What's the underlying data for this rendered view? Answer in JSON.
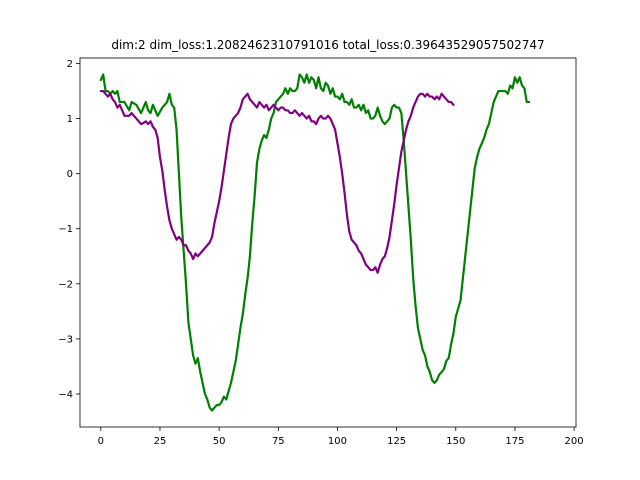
{
  "chart_data": {
    "type": "line",
    "title": "dim:2 dim_loss:1.2082462310791016 total_loss:0.39643529057502747",
    "xlabel": "",
    "ylabel": "",
    "xlim": [
      -8.8,
      200.8
    ],
    "ylim": [
      -4.6,
      2.1
    ],
    "xticks": [
      0,
      25,
      50,
      75,
      100,
      125,
      150,
      175,
      200
    ],
    "yticks": [
      -4,
      -3,
      -2,
      -1,
      0,
      1,
      2
    ],
    "ytick_labels": [
      "−4",
      "−3",
      "−2",
      "−1",
      "0",
      "1",
      "2"
    ],
    "grid": false,
    "legend": "none",
    "series": [
      {
        "color": "#008000",
        "points": [
          [
            0,
            1.7
          ],
          [
            1,
            1.8
          ],
          [
            2,
            1.5
          ],
          [
            3,
            1.5
          ],
          [
            4,
            1.45
          ],
          [
            5,
            1.5
          ],
          [
            6,
            1.45
          ],
          [
            7,
            1.5
          ],
          [
            8,
            1.3
          ],
          [
            10,
            1.3
          ],
          [
            12,
            1.15
          ],
          [
            13,
            1.3
          ],
          [
            15,
            1.25
          ],
          [
            17,
            1.1
          ],
          [
            19,
            1.3
          ],
          [
            20,
            1.15
          ],
          [
            21,
            1.1
          ],
          [
            22,
            1.25
          ],
          [
            24,
            1.05
          ],
          [
            26,
            1.2
          ],
          [
            28,
            1.3
          ],
          [
            29,
            1.45
          ],
          [
            30,
            1.25
          ],
          [
            31,
            1.2
          ],
          [
            32,
            0.8
          ],
          [
            33,
            0.0
          ],
          [
            34,
            -0.8
          ],
          [
            35,
            -1.4
          ],
          [
            36,
            -2.0
          ],
          [
            37,
            -2.7
          ],
          [
            38,
            -3.0
          ],
          [
            39,
            -3.3
          ],
          [
            40,
            -3.45
          ],
          [
            41,
            -3.35
          ],
          [
            42,
            -3.6
          ],
          [
            43,
            -3.8
          ],
          [
            44,
            -4.0
          ],
          [
            45,
            -4.1
          ],
          [
            46,
            -4.25
          ],
          [
            47,
            -4.3
          ],
          [
            48,
            -4.25
          ],
          [
            49,
            -4.2
          ],
          [
            50,
            -4.2
          ],
          [
            51,
            -4.15
          ],
          [
            52,
            -4.05
          ],
          [
            53,
            -4.1
          ],
          [
            54,
            -3.95
          ],
          [
            55,
            -3.8
          ],
          [
            56,
            -3.6
          ],
          [
            57,
            -3.4
          ],
          [
            58,
            -3.1
          ],
          [
            59,
            -2.8
          ],
          [
            60,
            -2.55
          ],
          [
            61,
            -2.2
          ],
          [
            62,
            -1.9
          ],
          [
            63,
            -1.5
          ],
          [
            64,
            -0.9
          ],
          [
            65,
            -0.4
          ],
          [
            66,
            0.2
          ],
          [
            67,
            0.45
          ],
          [
            68,
            0.6
          ],
          [
            69,
            0.7
          ],
          [
            70,
            0.65
          ],
          [
            71,
            0.8
          ],
          [
            72,
            1.0
          ],
          [
            73,
            1.1
          ],
          [
            74,
            1.3
          ],
          [
            75,
            1.35
          ],
          [
            76,
            1.4
          ],
          [
            77,
            1.45
          ],
          [
            78,
            1.55
          ],
          [
            79,
            1.45
          ],
          [
            80,
            1.55
          ],
          [
            81,
            1.5
          ],
          [
            82,
            1.5
          ],
          [
            83,
            1.55
          ],
          [
            84,
            1.8
          ],
          [
            85,
            1.75
          ],
          [
            86,
            1.65
          ],
          [
            87,
            1.8
          ],
          [
            88,
            1.65
          ],
          [
            89,
            1.75
          ],
          [
            90,
            1.7
          ],
          [
            91,
            1.55
          ],
          [
            92,
            1.75
          ],
          [
            93,
            1.55
          ],
          [
            94,
            1.5
          ],
          [
            95,
            1.65
          ],
          [
            96,
            1.6
          ],
          [
            97,
            1.45
          ],
          [
            98,
            1.55
          ],
          [
            99,
            1.4
          ],
          [
            100,
            1.4
          ],
          [
            101,
            1.35
          ],
          [
            102,
            1.45
          ],
          [
            103,
            1.3
          ],
          [
            104,
            1.3
          ],
          [
            105,
            1.25
          ],
          [
            106,
            1.35
          ],
          [
            107,
            1.2
          ],
          [
            108,
            1.2
          ],
          [
            109,
            1.25
          ],
          [
            110,
            1.15
          ],
          [
            111,
            1.25
          ],
          [
            112,
            1.1
          ],
          [
            113,
            1.15
          ],
          [
            114,
            1.0
          ],
          [
            115,
            1.0
          ],
          [
            116,
            1.05
          ],
          [
            117,
            1.2
          ],
          [
            118,
            1.05
          ],
          [
            119,
            0.95
          ],
          [
            120,
            0.9
          ],
          [
            121,
            0.95
          ],
          [
            122,
            1.0
          ],
          [
            123,
            1.2
          ],
          [
            124,
            1.25
          ],
          [
            125,
            1.2
          ],
          [
            126,
            1.2
          ],
          [
            127,
            1.1
          ],
          [
            128,
            0.6
          ],
          [
            129,
            0.0
          ],
          [
            130,
            -0.6
          ],
          [
            131,
            -1.2
          ],
          [
            132,
            -1.9
          ],
          [
            133,
            -2.4
          ],
          [
            134,
            -2.8
          ],
          [
            135,
            -3.0
          ],
          [
            136,
            -3.2
          ],
          [
            137,
            -3.3
          ],
          [
            138,
            -3.5
          ],
          [
            139,
            -3.6
          ],
          [
            140,
            -3.75
          ],
          [
            141,
            -3.8
          ],
          [
            142,
            -3.75
          ],
          [
            143,
            -3.65
          ],
          [
            144,
            -3.6
          ],
          [
            145,
            -3.55
          ],
          [
            146,
            -3.4
          ],
          [
            147,
            -3.35
          ],
          [
            148,
            -3.1
          ],
          [
            149,
            -2.9
          ],
          [
            150,
            -2.6
          ],
          [
            151,
            -2.45
          ],
          [
            152,
            -2.3
          ],
          [
            153,
            -1.9
          ],
          [
            154,
            -1.5
          ],
          [
            155,
            -1.1
          ],
          [
            156,
            -0.7
          ],
          [
            157,
            -0.3
          ],
          [
            158,
            0.1
          ],
          [
            159,
            0.3
          ],
          [
            160,
            0.45
          ],
          [
            161,
            0.55
          ],
          [
            162,
            0.65
          ],
          [
            163,
            0.8
          ],
          [
            164,
            0.9
          ],
          [
            165,
            1.1
          ],
          [
            166,
            1.3
          ],
          [
            167,
            1.4
          ],
          [
            168,
            1.5
          ],
          [
            169,
            1.5
          ],
          [
            170,
            1.5
          ],
          [
            171,
            1.5
          ],
          [
            172,
            1.45
          ],
          [
            173,
            1.6
          ],
          [
            174,
            1.55
          ],
          [
            175,
            1.75
          ],
          [
            176,
            1.65
          ],
          [
            177,
            1.75
          ],
          [
            178,
            1.6
          ],
          [
            179,
            1.55
          ],
          [
            180,
            1.3
          ],
          [
            181,
            1.3
          ]
        ]
      },
      {
        "color": "#800080",
        "points": [
          [
            0,
            1.5
          ],
          [
            1,
            1.5
          ],
          [
            2,
            1.45
          ],
          [
            3,
            1.4
          ],
          [
            4,
            1.45
          ],
          [
            5,
            1.35
          ],
          [
            6,
            1.3
          ],
          [
            7,
            1.2
          ],
          [
            8,
            1.25
          ],
          [
            9,
            1.15
          ],
          [
            10,
            1.05
          ],
          [
            11,
            1.05
          ],
          [
            12,
            1.05
          ],
          [
            13,
            1.1
          ],
          [
            14,
            1.05
          ],
          [
            15,
            1.0
          ],
          [
            16,
            0.95
          ],
          [
            17,
            0.9
          ],
          [
            18,
            0.92
          ],
          [
            19,
            0.95
          ],
          [
            20,
            0.9
          ],
          [
            21,
            0.95
          ],
          [
            22,
            0.85
          ],
          [
            23,
            0.8
          ],
          [
            24,
            0.65
          ],
          [
            25,
            0.3
          ],
          [
            26,
            0.05
          ],
          [
            27,
            -0.3
          ],
          [
            28,
            -0.6
          ],
          [
            29,
            -0.85
          ],
          [
            30,
            -1.0
          ],
          [
            31,
            -1.1
          ],
          [
            32,
            -1.2
          ],
          [
            33,
            -1.15
          ],
          [
            34,
            -1.2
          ],
          [
            35,
            -1.3
          ],
          [
            36,
            -1.3
          ],
          [
            37,
            -1.4
          ],
          [
            38,
            -1.45
          ],
          [
            39,
            -1.55
          ],
          [
            40,
            -1.45
          ],
          [
            41,
            -1.5
          ],
          [
            42,
            -1.45
          ],
          [
            43,
            -1.4
          ],
          [
            44,
            -1.35
          ],
          [
            45,
            -1.3
          ],
          [
            46,
            -1.25
          ],
          [
            47,
            -1.15
          ],
          [
            48,
            -0.9
          ],
          [
            49,
            -0.7
          ],
          [
            50,
            -0.5
          ],
          [
            51,
            -0.25
          ],
          [
            52,
            0.05
          ],
          [
            53,
            0.35
          ],
          [
            54,
            0.65
          ],
          [
            55,
            0.9
          ],
          [
            56,
            1.0
          ],
          [
            57,
            1.05
          ],
          [
            58,
            1.1
          ],
          [
            59,
            1.2
          ],
          [
            60,
            1.35
          ],
          [
            61,
            1.4
          ],
          [
            62,
            1.45
          ],
          [
            63,
            1.35
          ],
          [
            64,
            1.3
          ],
          [
            65,
            1.25
          ],
          [
            66,
            1.2
          ],
          [
            67,
            1.3
          ],
          [
            68,
            1.25
          ],
          [
            69,
            1.2
          ],
          [
            70,
            1.25
          ],
          [
            71,
            1.15
          ],
          [
            72,
            1.2
          ],
          [
            73,
            1.25
          ],
          [
            74,
            1.2
          ],
          [
            75,
            1.15
          ],
          [
            76,
            1.2
          ],
          [
            77,
            1.2
          ],
          [
            78,
            1.15
          ],
          [
            79,
            1.15
          ],
          [
            80,
            1.1
          ],
          [
            81,
            1.1
          ],
          [
            82,
            1.15
          ],
          [
            83,
            1.1
          ],
          [
            84,
            1.05
          ],
          [
            85,
            1.1
          ],
          [
            86,
            1.05
          ],
          [
            87,
            1.0
          ],
          [
            88,
            1.05
          ],
          [
            89,
            0.95
          ],
          [
            90,
            0.95
          ],
          [
            91,
            0.9
          ],
          [
            92,
            1.0
          ],
          [
            93,
            1.05
          ],
          [
            94,
            1.0
          ],
          [
            95,
            1.0
          ],
          [
            96,
            1.05
          ],
          [
            97,
            1.0
          ],
          [
            98,
            0.9
          ],
          [
            99,
            0.8
          ],
          [
            100,
            0.55
          ],
          [
            101,
            0.3
          ],
          [
            102,
            0.0
          ],
          [
            103,
            -0.35
          ],
          [
            104,
            -0.75
          ],
          [
            105,
            -1.05
          ],
          [
            106,
            -1.2
          ],
          [
            107,
            -1.25
          ],
          [
            108,
            -1.3
          ],
          [
            109,
            -1.4
          ],
          [
            110,
            -1.45
          ],
          [
            111,
            -1.55
          ],
          [
            112,
            -1.65
          ],
          [
            113,
            -1.7
          ],
          [
            114,
            -1.75
          ],
          [
            115,
            -1.75
          ],
          [
            116,
            -1.7
          ],
          [
            117,
            -1.8
          ],
          [
            118,
            -1.65
          ],
          [
            119,
            -1.55
          ],
          [
            120,
            -1.5
          ],
          [
            121,
            -1.35
          ],
          [
            122,
            -1.15
          ],
          [
            123,
            -0.85
          ],
          [
            124,
            -0.55
          ],
          [
            125,
            -0.2
          ],
          [
            126,
            0.1
          ],
          [
            127,
            0.4
          ],
          [
            128,
            0.6
          ],
          [
            129,
            0.8
          ],
          [
            130,
            0.95
          ],
          [
            131,
            1.05
          ],
          [
            132,
            1.2
          ],
          [
            133,
            1.3
          ],
          [
            134,
            1.4
          ],
          [
            135,
            1.45
          ],
          [
            136,
            1.45
          ],
          [
            137,
            1.4
          ],
          [
            138,
            1.45
          ],
          [
            139,
            1.4
          ],
          [
            140,
            1.4
          ],
          [
            141,
            1.35
          ],
          [
            142,
            1.4
          ],
          [
            143,
            1.35
          ],
          [
            144,
            1.45
          ],
          [
            145,
            1.4
          ],
          [
            146,
            1.35
          ],
          [
            147,
            1.3
          ],
          [
            148,
            1.3
          ],
          [
            149,
            1.25
          ]
        ]
      }
    ]
  }
}
